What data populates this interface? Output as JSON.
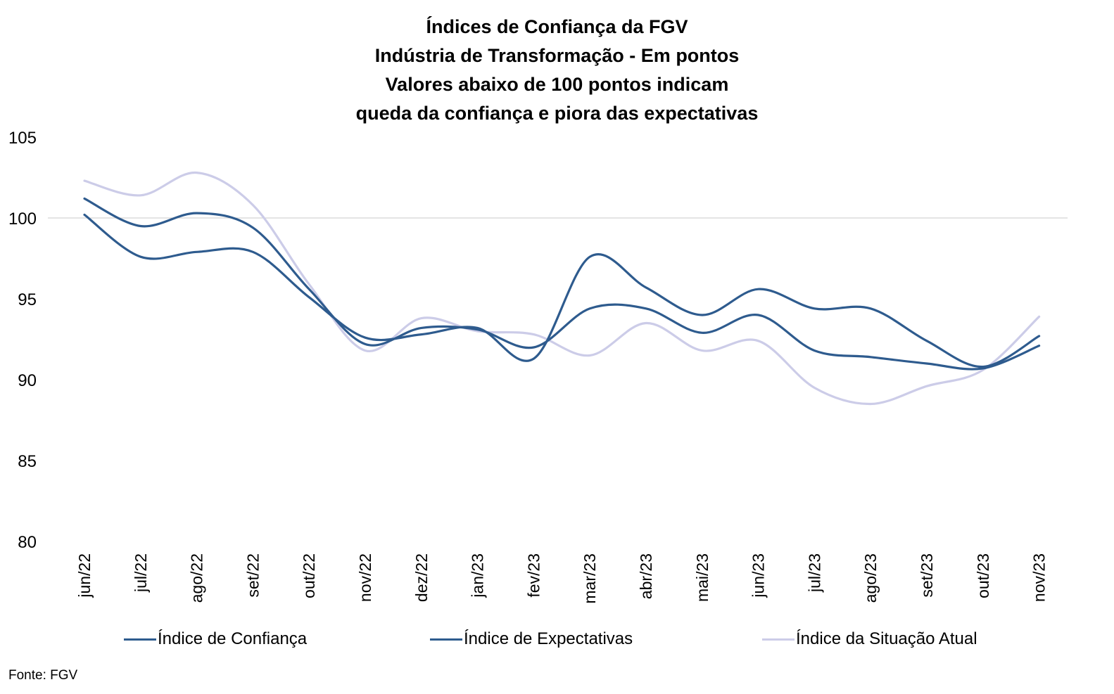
{
  "title_lines": [
    "Índices de Confiança da FGV",
    "Indústria de Transformação - Em pontos",
    "Valores abaixo de 100 pontos indicam",
    "queda da confiança e piora das expectativas"
  ],
  "source": "Fonte: FGV",
  "chart_data": {
    "type": "line",
    "title": "Índices de Confiança da FGV — Indústria de Transformação - Em pontos",
    "categories": [
      "jun/22",
      "jul/22",
      "ago/22",
      "set/22",
      "out/22",
      "nov/22",
      "dez/22",
      "jan/23",
      "fev/23",
      "mar/23",
      "abr/23",
      "mai/23",
      "jun/23",
      "jul/23",
      "ago/23",
      "set/23",
      "out/23",
      "nov/23"
    ],
    "ylim": [
      80,
      105
    ],
    "yticks": [
      "80",
      "85",
      "90",
      "95",
      "100",
      "105"
    ],
    "reference_line": 100,
    "legend_position": "bottom",
    "series": [
      {
        "name": "Índice de Confiança",
        "color": "#2e5b8e",
        "values": [
          101.2,
          99.5,
          100.3,
          99.4,
          95.6,
          92.2,
          93.2,
          93.1,
          92.0,
          94.4,
          94.4,
          92.9,
          94.0,
          91.8,
          91.4,
          91.0,
          90.7,
          92.1
        ]
      },
      {
        "name": "Índice de Expectativas",
        "color": "#2e5b8e",
        "values": [
          100.2,
          97.6,
          97.9,
          97.9,
          95.1,
          92.6,
          92.8,
          93.2,
          91.3,
          97.6,
          95.7,
          94.0,
          95.6,
          94.4,
          94.4,
          92.4,
          90.8,
          92.7
        ]
      },
      {
        "name": "Índice da Situação Atual",
        "color": "#cccce8",
        "values": [
          102.3,
          101.4,
          102.8,
          100.8,
          95.9,
          91.8,
          93.8,
          93.0,
          92.8,
          91.5,
          93.5,
          91.8,
          92.4,
          89.5,
          88.5,
          89.6,
          90.6,
          93.9
        ]
      }
    ]
  }
}
